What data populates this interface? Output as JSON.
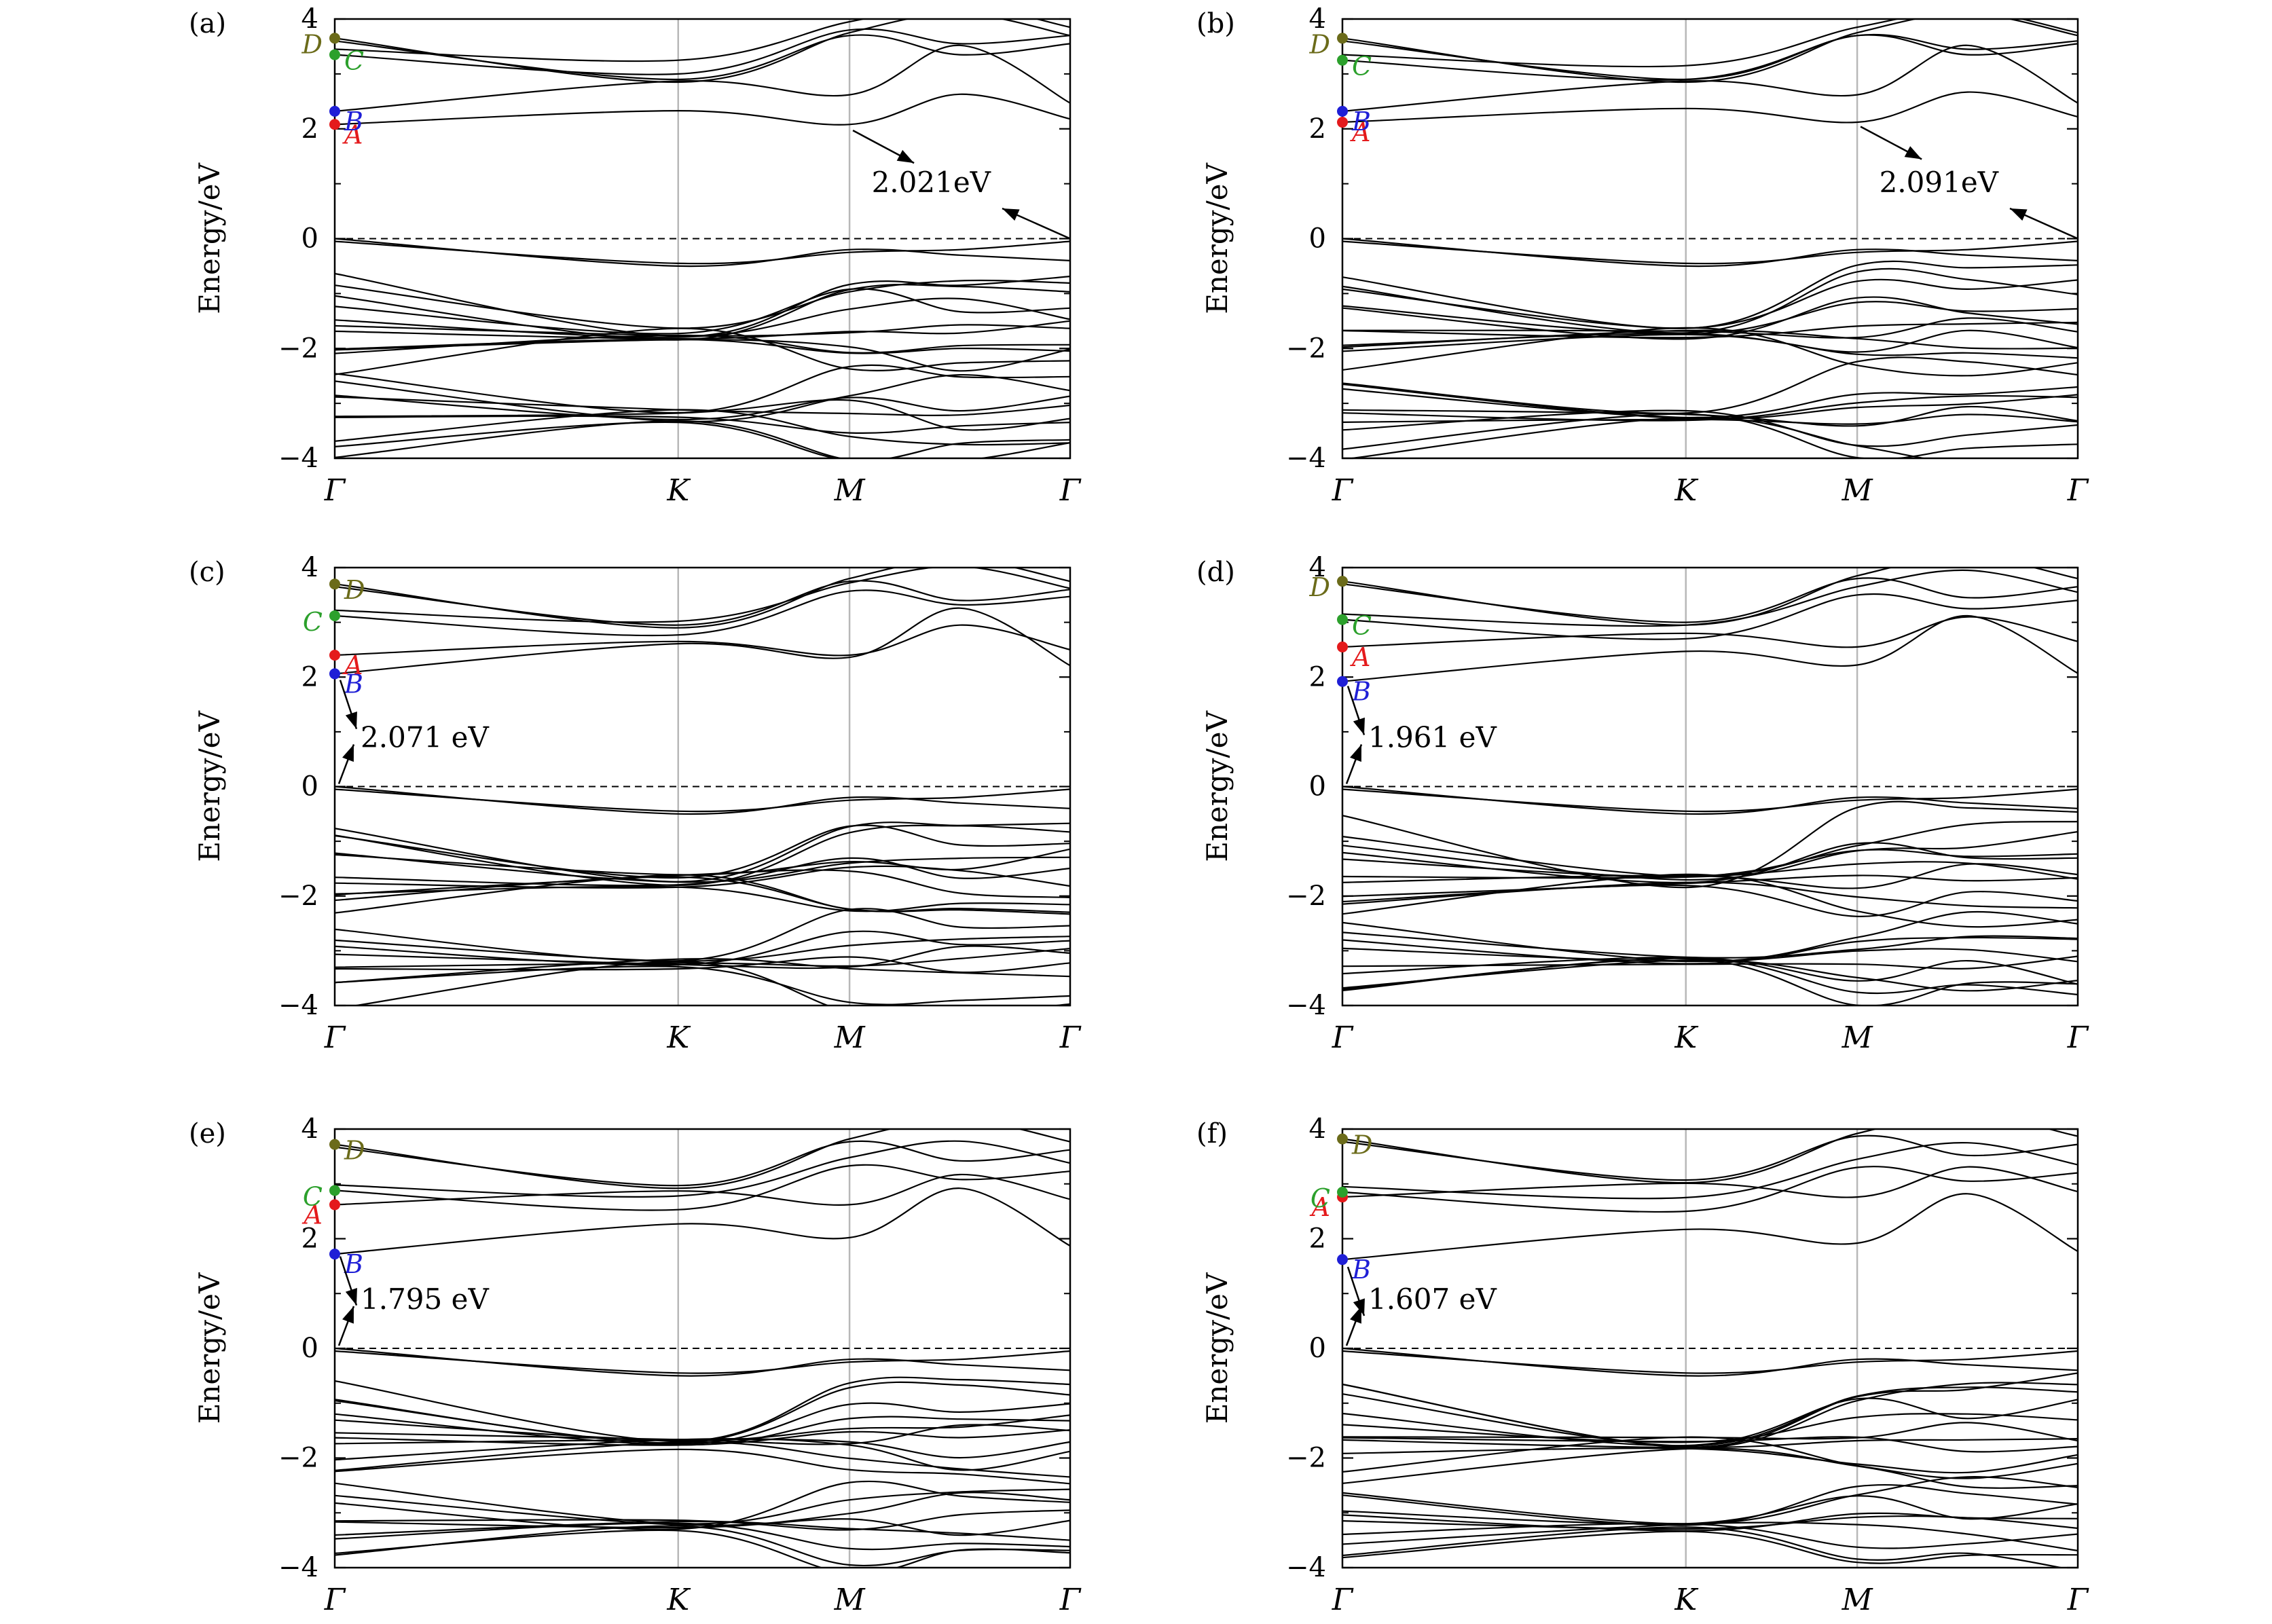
{
  "figure": {
    "panels": [
      {
        "label": "(a)",
        "gap": "2.021eV",
        "gap_style": "indirect"
      },
      {
        "label": "(b)",
        "gap": "2.091eV",
        "gap_style": "indirect"
      },
      {
        "label": "(c)",
        "gap": "2.071 eV",
        "gap_style": "direct"
      },
      {
        "label": "(d)",
        "gap": "1.961 eV",
        "gap_style": "direct"
      },
      {
        "label": "(e)",
        "gap": "1.795 eV",
        "gap_style": "direct"
      },
      {
        "label": "(f)",
        "gap": "1.607 eV",
        "gap_style": "direct"
      }
    ]
  },
  "chart_data": [
    {
      "type": "line",
      "panel": "(a)",
      "ylabel": "Energy/eV",
      "ylim": [
        -4,
        4
      ],
      "yticks": [
        "−4",
        "−2",
        "0",
        "2",
        "4"
      ],
      "x_ticks": [
        "Γ",
        "K",
        "M",
        "Γ"
      ],
      "fermi_level": 0,
      "vbm": {
        "k": "Γ(end)",
        "energy": 0.0
      },
      "cbm": {
        "k": "M",
        "energy": 2.02
      },
      "gap_annotation": "2.021eV",
      "points": [
        {
          "name": "A",
          "energy": 2.08,
          "color": "#e41a1c"
        },
        {
          "name": "B",
          "energy": 2.32,
          "color": "#1f1fd6"
        },
        {
          "name": "C",
          "energy": 3.35,
          "color": "#2ca02c"
        },
        {
          "name": "D",
          "energy": 3.65,
          "color": "#6b6b1a"
        }
      ]
    },
    {
      "type": "line",
      "panel": "(b)",
      "ylabel": "Energy/eV",
      "ylim": [
        -4,
        4
      ],
      "yticks": [
        "−4",
        "−2",
        "0",
        "2",
        "4"
      ],
      "x_ticks": [
        "Γ",
        "K",
        "M",
        "Γ"
      ],
      "fermi_level": 0,
      "vbm": {
        "k": "Γ(end)",
        "energy": 0.0
      },
      "cbm": {
        "k": "M",
        "energy": 2.09
      },
      "gap_annotation": "2.091eV",
      "points": [
        {
          "name": "A",
          "energy": 2.12,
          "color": "#e41a1c"
        },
        {
          "name": "B",
          "energy": 2.32,
          "color": "#1f1fd6"
        },
        {
          "name": "C",
          "energy": 3.25,
          "color": "#2ca02c"
        },
        {
          "name": "D",
          "energy": 3.65,
          "color": "#6b6b1a"
        }
      ]
    },
    {
      "type": "line",
      "panel": "(c)",
      "ylabel": "Energy/eV",
      "ylim": [
        -4,
        4
      ],
      "yticks": [
        "−4",
        "−2",
        "0",
        "2",
        "4"
      ],
      "x_ticks": [
        "Γ",
        "K",
        "M",
        "Γ"
      ],
      "fermi_level": 0,
      "vbm": {
        "k": "Γ",
        "energy": 0.0
      },
      "cbm": {
        "k": "Γ",
        "energy": 2.07
      },
      "gap_annotation": "2.071 eV",
      "points": [
        {
          "name": "A",
          "energy": 2.4,
          "color": "#e41a1c"
        },
        {
          "name": "B",
          "energy": 2.06,
          "color": "#1f1fd6"
        },
        {
          "name": "C",
          "energy": 3.12,
          "color": "#2ca02c"
        },
        {
          "name": "D",
          "energy": 3.7,
          "color": "#6b6b1a"
        }
      ]
    },
    {
      "type": "line",
      "panel": "(d)",
      "ylabel": "Energy/eV",
      "ylim": [
        -4,
        4
      ],
      "yticks": [
        "−4",
        "−2",
        "0",
        "2",
        "4"
      ],
      "x_ticks": [
        "Γ",
        "K",
        "M",
        "Γ"
      ],
      "fermi_level": 0,
      "vbm": {
        "k": "Γ",
        "energy": 0.0
      },
      "cbm": {
        "k": "Γ",
        "energy": 1.96
      },
      "gap_annotation": "1.961 eV",
      "points": [
        {
          "name": "A",
          "energy": 2.55,
          "color": "#e41a1c"
        },
        {
          "name": "B",
          "energy": 1.92,
          "color": "#1f1fd6"
        },
        {
          "name": "C",
          "energy": 3.05,
          "color": "#2ca02c"
        },
        {
          "name": "D",
          "energy": 3.75,
          "color": "#6b6b1a"
        }
      ]
    },
    {
      "type": "line",
      "panel": "(e)",
      "ylabel": "Energy/eV",
      "ylim": [
        -4,
        4
      ],
      "yticks": [
        "−4",
        "−2",
        "0",
        "2",
        "4"
      ],
      "x_ticks": [
        "Γ",
        "K",
        "M",
        "Γ"
      ],
      "fermi_level": 0,
      "vbm": {
        "k": "Γ",
        "energy": 0.0
      },
      "cbm": {
        "k": "Γ",
        "energy": 1.8
      },
      "gap_annotation": "1.795 eV",
      "points": [
        {
          "name": "A",
          "energy": 2.62,
          "color": "#e41a1c"
        },
        {
          "name": "B",
          "energy": 1.72,
          "color": "#1f1fd6"
        },
        {
          "name": "C",
          "energy": 2.88,
          "color": "#2ca02c"
        },
        {
          "name": "D",
          "energy": 3.72,
          "color": "#6b6b1a"
        }
      ]
    },
    {
      "type": "line",
      "panel": "(f)",
      "ylabel": "Energy/eV",
      "ylim": [
        -4,
        4
      ],
      "yticks": [
        "−4",
        "−2",
        "0",
        "2",
        "4"
      ],
      "x_ticks": [
        "Γ",
        "K",
        "M",
        "Γ"
      ],
      "fermi_level": 0,
      "vbm": {
        "k": "Γ",
        "energy": 0.0
      },
      "cbm": {
        "k": "Γ",
        "energy": 1.61
      },
      "gap_annotation": "1.607 eV",
      "points": [
        {
          "name": "A",
          "energy": 2.76,
          "color": "#e41a1c"
        },
        {
          "name": "B",
          "energy": 1.62,
          "color": "#1f1fd6"
        },
        {
          "name": "C",
          "energy": 2.85,
          "color": "#2ca02c"
        },
        {
          "name": "D",
          "energy": 3.82,
          "color": "#6b6b1a"
        }
      ]
    }
  ]
}
